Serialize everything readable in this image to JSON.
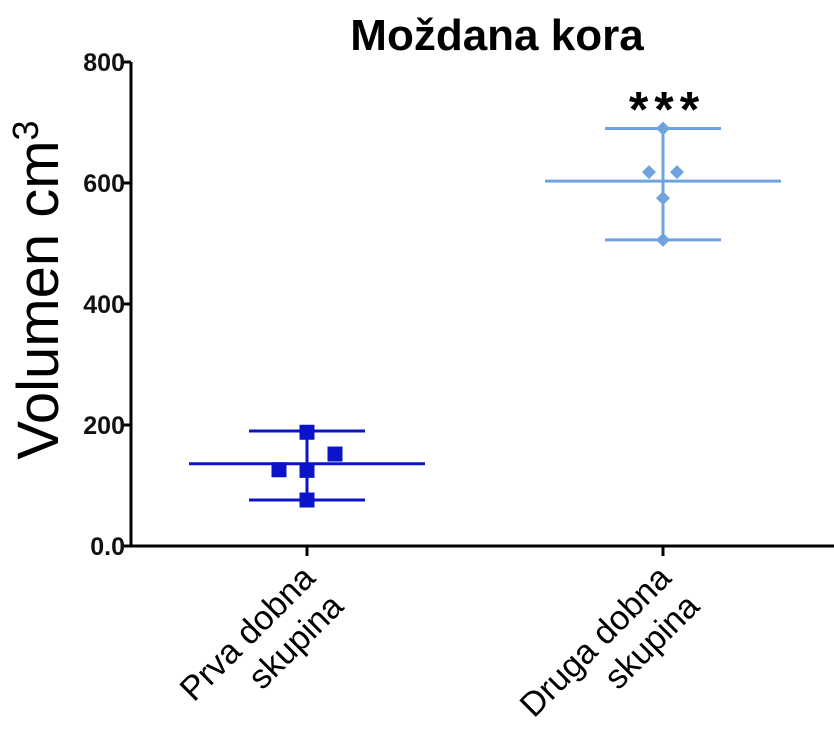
{
  "chart_data": {
    "type": "scatter",
    "title": "Moždana kora",
    "ylabel": "Volumen cm",
    "ylabel_superscript": "3",
    "xlabel": "",
    "ylim": [
      0,
      800
    ],
    "yticks": [
      {
        "value": 0,
        "label": "0.0"
      },
      {
        "value": 200,
        "label": "200"
      },
      {
        "value": 400,
        "label": "400"
      },
      {
        "value": 600,
        "label": "600"
      },
      {
        "value": 800,
        "label": "800"
      }
    ],
    "grid": false,
    "legend": "none",
    "categories": [
      {
        "lines": [
          "Prva dobna",
          "skupina"
        ]
      },
      {
        "lines": [
          "Druga dobna",
          "skupina"
        ]
      }
    ],
    "series": [
      {
        "category": 0,
        "color": "#0b14c8",
        "marker": "square",
        "points": [
          {
            "offset": 0,
            "y": 188
          },
          {
            "offset": 0.16,
            "y": 152
          },
          {
            "offset": -0.16,
            "y": 126
          },
          {
            "offset": 0,
            "y": 125
          },
          {
            "offset": 0,
            "y": 76
          }
        ],
        "mean": 136,
        "error_low": 76,
        "error_high": 190
      },
      {
        "category": 1,
        "color": "#6fa3df",
        "marker": "diamond",
        "points": [
          {
            "offset": 0,
            "y": 690
          },
          {
            "offset": -0.08,
            "y": 618
          },
          {
            "offset": 0.08,
            "y": 618
          },
          {
            "offset": 0,
            "y": 575
          },
          {
            "offset": 0,
            "y": 506
          }
        ],
        "mean": 603,
        "error_low": 506,
        "error_high": 690,
        "annotation": "***"
      }
    ]
  }
}
